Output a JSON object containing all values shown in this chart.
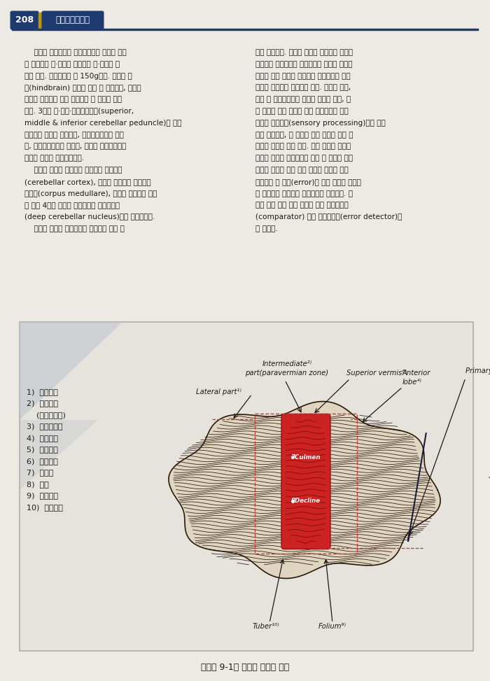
{
  "page_number": "208",
  "header_text": "신경해부생리학",
  "header_bg": "#1a3a6b",
  "header_gold": "#b8960c",
  "page_bg": "#ede9e3",
  "body_text_left_col": [
    "    소뇌는 전체적으로 달걀모양이며 정중면 부분",
    "이 잘록하고 위·아래로 편평하며 좌·우로는 길",
    "이가 길다. 평균무게는 약 150g이다. 소뇌는 후",
    "뇌(hindbrain) 중에서 가장 큰 부분이며, 뇌줄기",
    "뒤쪽에 위치하고 있어 뇌줄기의 각 부분을 연결",
    "한다. 3쌍의 위·중간·아래소뇌다리(superior,",
    "middle & inferior cerebellar peduncle)에 의해",
    "뇌줄기와 연결을 이루는데, 아래소뇌다리는 수뇌",
    "를, 중간소뇌다리는 교뇌를, 그리고 위소뇌다리는",
    "중뇌를 소뇌와 연결시켜준다.",
    "    소뇌는 바깥에 회색질로 이루어진 소뇌피질",
    "(cerebellar cortex), 안쪽에 백색질로 이루어진",
    "수질체(corpus medullare), 그리고 수질체에 파문",
    "혀 있는 4쌍의 신경핵 덩어리들인 깊은소뇌핵",
    "(deep cerebellar nucleus)으로 이루어진다.",
    "    소뇌의 기능은 무의식적인 수준에서 운동 조"
  ],
  "body_text_right_col": [
    "절을 담당한다. 소뇌는 말초와 고위중추 사이를",
    "연결하는 감각신경과 운동신경의 중요한 통로에",
    "인접해 있어 오르고 내려가는 신경섬유의 곁가",
    "지들이 풍부하게 분포되어 있다. 소뇌는 피부,",
    "관절 및 근육으로부터 체감각 정보와 시각, 청",
    "각 그리고 신체 평형에 관한 감각정보를 받고",
    "있지만 감각처리(sensory processing)와는 관계",
    "없이 근육활동, 즉 현재의 진행 상황에 관한 고",
    "유감각 정보를 받고 있다. 뿐만 아니라 대뇌피",
    "질에서 형성된 수의운동의 계획 및 시행에 관한",
    "정보를 동시에 받고 있기 때문에 이들을 상호",
    "비교하여 그 오차(error)를 찾아 교정해 줌으로",
    "써 움직임이 조화롭게 일어나도록 조정한다. 소",
    "뇌의 이와 같은 기능 때문에 일명 비교측정기",
    "(comparator) 또는 오차감지기(error detector)라",
    "고 부른다."
  ],
  "legend_items": [
    "1)  외측부분",
    "2)  중간부분",
    "    (벌레옆영역)",
    "3)  위소뇌벌레",
    "4)  소뇌앞엽",
    "5)  첫째틈새",
    "6)  소뇌뒤엽",
    "7)  꼭대기",
    "8)  경사",
    "9)  벌레이랑",
    "10)  벌레융기"
  ],
  "caption": "〈그림 9-1〉 소뇌의 등쪽면 그림"
}
